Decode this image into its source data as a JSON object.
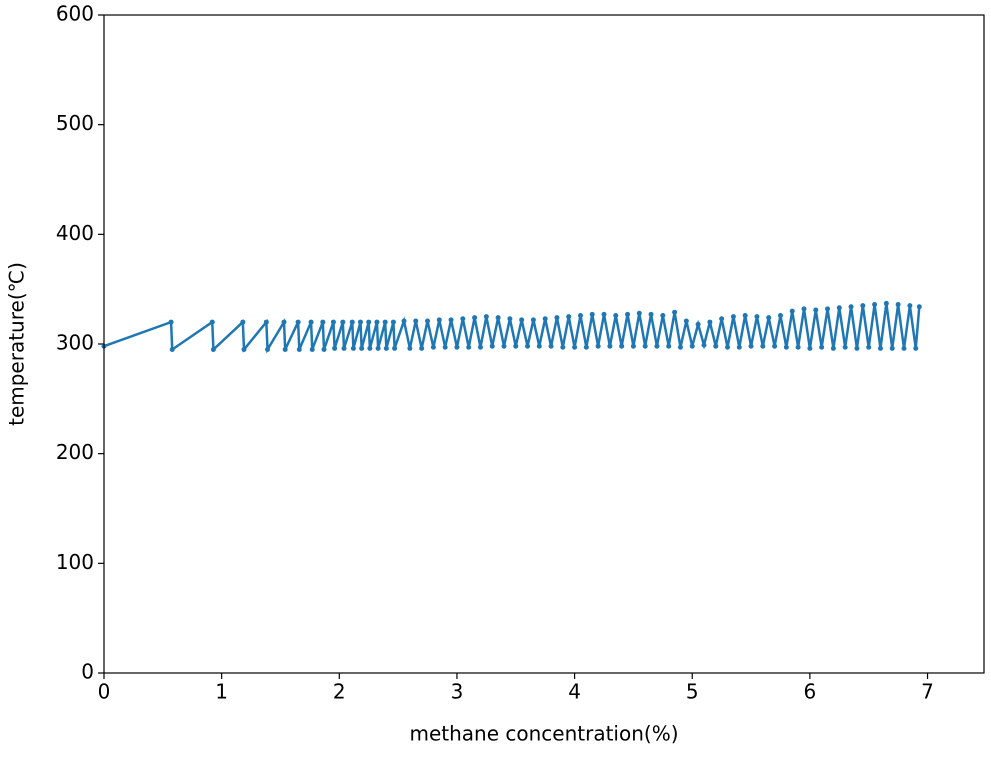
{
  "chart_data": {
    "type": "line",
    "xlabel": "methane concentration(%)",
    "ylabel": "temperature(℃)",
    "xlim": [
      0,
      7.48
    ],
    "ylim": [
      0,
      600
    ],
    "xticks": [
      0,
      1,
      2,
      3,
      4,
      5,
      6,
      7
    ],
    "yticks": [
      0,
      100,
      200,
      300,
      400,
      500,
      600
    ],
    "series": [
      {
        "color": "#1f77b4",
        "x": [
          0,
          0.57,
          0.58,
          0.92,
          0.93,
          1.18,
          1.19,
          1.38,
          1.39,
          1.53,
          1.54,
          1.65,
          1.66,
          1.76,
          1.77,
          1.86,
          1.87,
          1.95,
          1.96,
          2.03,
          2.04,
          2.11,
          2.12,
          2.18,
          2.19,
          2.25,
          2.26,
          2.32,
          2.33,
          2.39,
          2.4,
          2.46,
          2.47,
          2.55,
          2.6,
          2.65,
          2.7,
          2.75,
          2.8,
          2.85,
          2.9,
          2.95,
          3.0,
          3.05,
          3.1,
          3.15,
          3.2,
          3.25,
          3.3,
          3.35,
          3.4,
          3.45,
          3.5,
          3.55,
          3.6,
          3.65,
          3.7,
          3.75,
          3.8,
          3.85,
          3.9,
          3.95,
          4.0,
          4.05,
          4.1,
          4.15,
          4.2,
          4.25,
          4.3,
          4.35,
          4.4,
          4.45,
          4.5,
          4.55,
          4.6,
          4.65,
          4.7,
          4.75,
          4.8,
          4.85,
          4.9,
          4.95,
          5.0,
          5.05,
          5.1,
          5.15,
          5.2,
          5.25,
          5.3,
          5.35,
          5.4,
          5.45,
          5.5,
          5.55,
          5.6,
          5.65,
          5.7,
          5.75,
          5.8,
          5.85,
          5.9,
          5.95,
          6.0,
          6.05,
          6.1,
          6.15,
          6.2,
          6.25,
          6.3,
          6.35,
          6.4,
          6.45,
          6.5,
          6.55,
          6.6,
          6.65,
          6.7,
          6.75,
          6.8,
          6.85,
          6.9,
          6.93
        ],
        "values": [
          298,
          320,
          295,
          320,
          295,
          320,
          295,
          320,
          295,
          320,
          295,
          320,
          295,
          320,
          295,
          320,
          295,
          320,
          296,
          320,
          296,
          320,
          296,
          320,
          296,
          320,
          296,
          320,
          296,
          320,
          296,
          320,
          296,
          321,
          296,
          321,
          296,
          321,
          297,
          322,
          297,
          322,
          297,
          323,
          297,
          324,
          297,
          325,
          298,
          324,
          298,
          323,
          298,
          322,
          298,
          322,
          298,
          323,
          298,
          324,
          297,
          325,
          297,
          326,
          297,
          327,
          298,
          327,
          298,
          326,
          298,
          327,
          298,
          328,
          298,
          327,
          298,
          326,
          298,
          329,
          297,
          321,
          298,
          318,
          299,
          320,
          298,
          323,
          297,
          325,
          297,
          326,
          298,
          325,
          298,
          324,
          298,
          326,
          297,
          330,
          297,
          332,
          296,
          331,
          297,
          332,
          296,
          333,
          297,
          334,
          296,
          335,
          297,
          336,
          296,
          337,
          296,
          336,
          296,
          335,
          296,
          334
        ]
      }
    ]
  }
}
